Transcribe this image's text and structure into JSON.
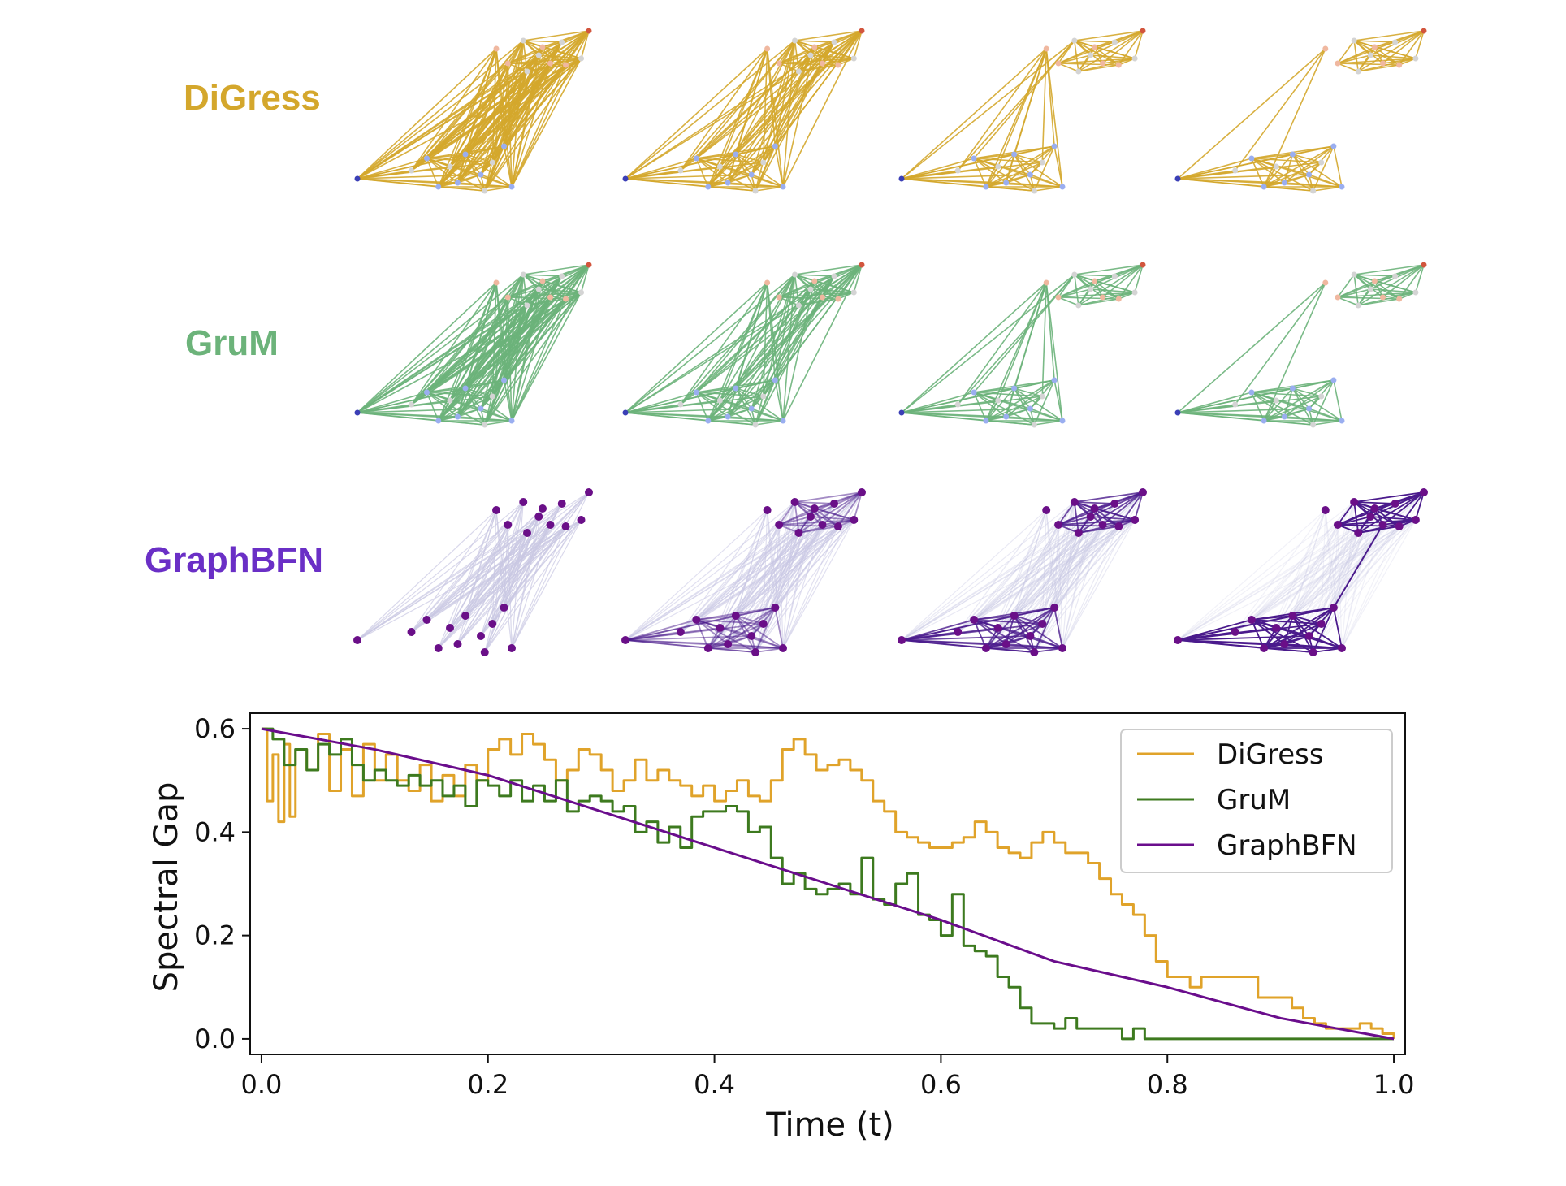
{
  "rows": [
    {
      "label": "DiGress",
      "color": "#d4a72c"
    },
    {
      "label": "GruM",
      "color": "#6cb37a"
    },
    {
      "label": "GraphBFN",
      "color": "#6a2fc6"
    }
  ],
  "node_colors": {
    "blue": "#3b3fb6",
    "light_blue": "#9aaef0",
    "pink": "#f0b8a0",
    "red": "#d2553d",
    "grey": "#d4d4d4",
    "purple_node": "#6a0f88",
    "bfn_edge_light": "#c9c7e3",
    "bfn_edge_dark": "#4a1a8c"
  },
  "chart_data": {
    "type": "line",
    "xlabel": "Time (t)",
    "ylabel": "Spectral Gap",
    "xlim": [
      -0.01,
      1.01
    ],
    "ylim": [
      -0.03,
      0.63
    ],
    "xticks": [
      0.0,
      0.2,
      0.4,
      0.6,
      0.8,
      1.0
    ],
    "xtick_labels": [
      "0.0",
      "0.2",
      "0.4",
      "0.6",
      "0.8",
      "1.0"
    ],
    "yticks": [
      0.0,
      0.2,
      0.4,
      0.6
    ],
    "ytick_labels": [
      "0.0",
      "0.2",
      "0.4",
      "0.6"
    ],
    "legend_position": "top-right",
    "series": [
      {
        "name": "DiGress",
        "color": "#e0a32a",
        "x": [
          0.0,
          0.005,
          0.01,
          0.015,
          0.02,
          0.025,
          0.03,
          0.04,
          0.05,
          0.06,
          0.07,
          0.08,
          0.09,
          0.1,
          0.11,
          0.12,
          0.13,
          0.14,
          0.15,
          0.16,
          0.17,
          0.18,
          0.19,
          0.2,
          0.21,
          0.22,
          0.23,
          0.24,
          0.25,
          0.26,
          0.27,
          0.28,
          0.29,
          0.3,
          0.31,
          0.32,
          0.33,
          0.34,
          0.35,
          0.36,
          0.37,
          0.38,
          0.39,
          0.4,
          0.41,
          0.42,
          0.43,
          0.44,
          0.45,
          0.46,
          0.47,
          0.48,
          0.49,
          0.5,
          0.51,
          0.52,
          0.53,
          0.54,
          0.55,
          0.56,
          0.57,
          0.58,
          0.59,
          0.6,
          0.61,
          0.62,
          0.63,
          0.64,
          0.65,
          0.66,
          0.67,
          0.68,
          0.69,
          0.7,
          0.71,
          0.72,
          0.73,
          0.74,
          0.75,
          0.76,
          0.77,
          0.78,
          0.79,
          0.8,
          0.81,
          0.82,
          0.83,
          0.84,
          0.85,
          0.86,
          0.87,
          0.88,
          0.89,
          0.9,
          0.91,
          0.92,
          0.93,
          0.94,
          0.95,
          0.96,
          0.97,
          0.98,
          0.99,
          1.0
        ],
        "values": [
          0.6,
          0.46,
          0.55,
          0.42,
          0.57,
          0.43,
          0.56,
          0.52,
          0.59,
          0.48,
          0.56,
          0.47,
          0.57,
          0.5,
          0.55,
          0.5,
          0.48,
          0.53,
          0.46,
          0.51,
          0.47,
          0.53,
          0.5,
          0.56,
          0.58,
          0.55,
          0.59,
          0.57,
          0.54,
          0.5,
          0.52,
          0.56,
          0.55,
          0.52,
          0.48,
          0.5,
          0.54,
          0.5,
          0.52,
          0.5,
          0.49,
          0.47,
          0.49,
          0.46,
          0.48,
          0.5,
          0.47,
          0.46,
          0.5,
          0.56,
          0.58,
          0.55,
          0.52,
          0.53,
          0.54,
          0.52,
          0.5,
          0.46,
          0.44,
          0.4,
          0.39,
          0.38,
          0.37,
          0.37,
          0.38,
          0.39,
          0.42,
          0.4,
          0.37,
          0.36,
          0.35,
          0.38,
          0.4,
          0.38,
          0.36,
          0.36,
          0.34,
          0.31,
          0.28,
          0.26,
          0.24,
          0.2,
          0.15,
          0.12,
          0.12,
          0.1,
          0.12,
          0.12,
          0.12,
          0.12,
          0.12,
          0.08,
          0.08,
          0.08,
          0.06,
          0.04,
          0.03,
          0.02,
          0.02,
          0.02,
          0.03,
          0.02,
          0.01,
          0.0
        ]
      },
      {
        "name": "GruM",
        "color": "#3d7a1f",
        "x": [
          0.0,
          0.01,
          0.02,
          0.03,
          0.04,
          0.05,
          0.06,
          0.07,
          0.08,
          0.09,
          0.1,
          0.11,
          0.12,
          0.13,
          0.14,
          0.15,
          0.16,
          0.17,
          0.18,
          0.19,
          0.2,
          0.21,
          0.22,
          0.23,
          0.24,
          0.25,
          0.26,
          0.27,
          0.28,
          0.29,
          0.3,
          0.31,
          0.32,
          0.33,
          0.34,
          0.35,
          0.36,
          0.37,
          0.38,
          0.39,
          0.4,
          0.41,
          0.42,
          0.43,
          0.44,
          0.45,
          0.46,
          0.47,
          0.48,
          0.49,
          0.5,
          0.51,
          0.52,
          0.53,
          0.54,
          0.55,
          0.56,
          0.57,
          0.58,
          0.59,
          0.6,
          0.61,
          0.62,
          0.63,
          0.64,
          0.65,
          0.66,
          0.67,
          0.68,
          0.69,
          0.7,
          0.71,
          0.72,
          0.73,
          0.74,
          0.75,
          0.76,
          0.77,
          0.78,
          0.8,
          0.85,
          0.9,
          0.95,
          1.0
        ],
        "values": [
          0.6,
          0.58,
          0.53,
          0.56,
          0.52,
          0.57,
          0.55,
          0.58,
          0.53,
          0.5,
          0.52,
          0.5,
          0.49,
          0.51,
          0.49,
          0.5,
          0.47,
          0.49,
          0.45,
          0.5,
          0.49,
          0.47,
          0.5,
          0.46,
          0.49,
          0.46,
          0.5,
          0.44,
          0.46,
          0.47,
          0.46,
          0.44,
          0.45,
          0.4,
          0.42,
          0.38,
          0.41,
          0.37,
          0.43,
          0.44,
          0.44,
          0.45,
          0.44,
          0.4,
          0.41,
          0.35,
          0.3,
          0.32,
          0.29,
          0.28,
          0.29,
          0.3,
          0.28,
          0.35,
          0.27,
          0.26,
          0.3,
          0.32,
          0.24,
          0.23,
          0.2,
          0.28,
          0.18,
          0.17,
          0.16,
          0.12,
          0.1,
          0.06,
          0.03,
          0.03,
          0.02,
          0.04,
          0.02,
          0.02,
          0.02,
          0.02,
          0.0,
          0.02,
          0.0,
          0.0,
          0.0,
          0.0,
          0.0,
          0.0
        ]
      },
      {
        "name": "GraphBFN",
        "color": "#6a0d8c",
        "x": [
          0.0,
          0.1,
          0.2,
          0.3,
          0.4,
          0.5,
          0.6,
          0.7,
          0.8,
          0.9,
          1.0
        ],
        "values": [
          0.6,
          0.56,
          0.51,
          0.44,
          0.37,
          0.3,
          0.23,
          0.15,
          0.1,
          0.04,
          0.0
        ]
      }
    ]
  }
}
